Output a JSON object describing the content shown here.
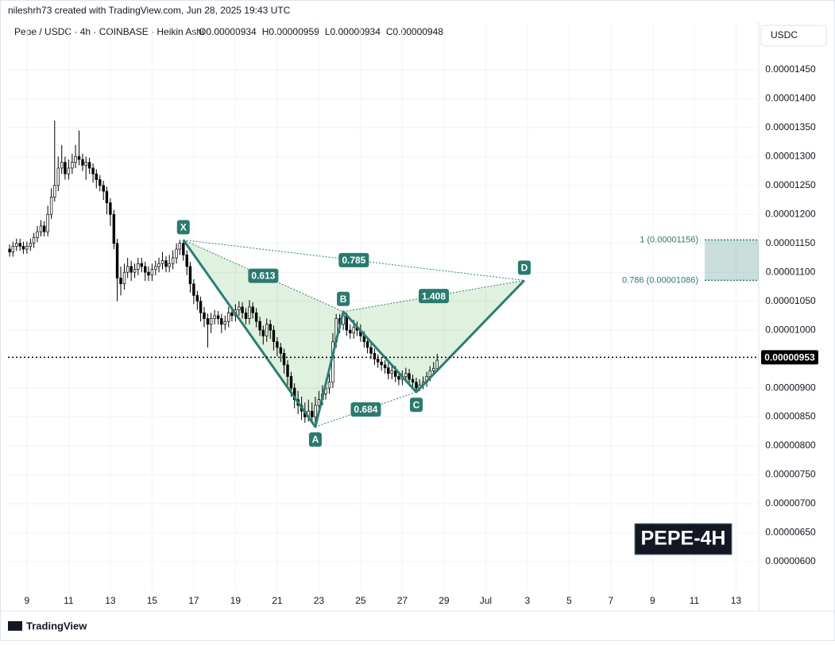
{
  "header": {
    "credit": "nileshrh73 created with TradingView.com, Jun 28, 2025 19:43 UTC",
    "currency": "USDC",
    "badge": "PEPE-4H",
    "brand": "TradingView"
  },
  "chart_data": {
    "type": "candlestick",
    "title": "Pepe / USDC · 4h · COINBASE · Heikin Ashi",
    "ohlc": [
      "O0.00000934",
      "H0.00000959",
      "L0.00000934",
      "C0.00000948"
    ],
    "xlim": [
      8.09,
      44.09
    ],
    "ylim": [
      5.56e-06,
      1.491e-05
    ],
    "grid": true,
    "up_color": "#ffffff",
    "down_color": "#000000",
    "xticks": [
      9,
      11,
      13,
      15,
      17,
      19,
      21,
      23,
      25,
      27,
      29,
      {
        "value": 31,
        "label": "Jul"
      },
      {
        "value": 33,
        "label": "3"
      },
      {
        "value": 35,
        "label": "5"
      },
      {
        "value": 37,
        "label": "7"
      },
      {
        "value": 39,
        "label": "9"
      },
      {
        "value": 41,
        "label": "11"
      },
      {
        "value": 43,
        "label": "13"
      }
    ],
    "yticks": [
      {
        "value": 6e-06,
        "label": "0.00000600"
      },
      {
        "value": 6.5e-06,
        "label": "0.00000650"
      },
      {
        "value": 7e-06,
        "label": "0.00000700"
      },
      {
        "value": 7.5e-06,
        "label": "0.00000750"
      },
      {
        "value": 8e-06,
        "label": "0.00000800"
      },
      {
        "value": 8.5e-06,
        "label": "0.00000850"
      },
      {
        "value": 9e-06,
        "label": "0.00000900"
      },
      {
        "value": 9.5e-06,
        "label": "0.00000950"
      },
      {
        "value": 1e-05,
        "label": "0.00001000"
      },
      {
        "value": 1.05e-05,
        "label": "0.00001050"
      },
      {
        "value": 1.1e-05,
        "label": "0.00001100"
      },
      {
        "value": 1.15e-05,
        "label": "0.00001150"
      },
      {
        "value": 1.2e-05,
        "label": "0.00001200"
      },
      {
        "value": 1.25e-05,
        "label": "0.00001250"
      },
      {
        "value": 1.3e-05,
        "label": "0.00001300"
      },
      {
        "value": 1.35e-05,
        "label": "0.00001350"
      },
      {
        "value": 1.4e-05,
        "label": "0.00001400"
      },
      {
        "value": 1.45e-05,
        "label": "0.00001450"
      }
    ],
    "last_price": {
      "value": 9.53e-06,
      "label": "0.00000953"
    },
    "candles": [
      [
        8.17,
        1.14e-05,
        1.148e-05,
        1.127e-05,
        1.135e-05
      ],
      [
        8.33,
        1.135e-05,
        1.153e-05,
        1.127e-05,
        1.145e-05
      ],
      [
        8.5,
        1.145e-05,
        1.158e-05,
        1.137e-05,
        1.15e-05
      ],
      [
        8.67,
        1.15e-05,
        1.158e-05,
        1.137e-05,
        1.145e-05
      ],
      [
        8.83,
        1.145e-05,
        1.153e-05,
        1.132e-05,
        1.14e-05
      ],
      [
        9,
        1.14e-05,
        1.153e-05,
        1.132e-05,
        1.145e-05
      ],
      [
        9.17,
        1.145e-05,
        1.158e-05,
        1.137e-05,
        1.15e-05
      ],
      [
        9.33,
        1.15e-05,
        1.168e-05,
        1.142e-05,
        1.16e-05
      ],
      [
        9.5,
        1.16e-05,
        1.18e-05,
        1.152e-05,
        1.17e-05
      ],
      [
        9.67,
        1.17e-05,
        1.19e-05,
        1.162e-05,
        1.18e-05
      ],
      [
        9.83,
        1.18e-05,
        1.188e-05,
        1.162e-05,
        1.17e-05
      ],
      [
        10,
        1.17e-05,
        1.215e-05,
        1.162e-05,
        1.2e-05
      ],
      [
        10.17,
        1.2e-05,
        1.245e-05,
        1.192e-05,
        1.23e-05
      ],
      [
        10.33,
        1.23e-05,
        1.362e-05,
        1.222e-05,
        1.25e-05
      ],
      [
        10.5,
        1.25e-05,
        1.3e-05,
        1.24e-05,
        1.28e-05
      ],
      [
        10.67,
        1.28e-05,
        1.32e-05,
        1.27e-05,
        1.29e-05
      ],
      [
        10.83,
        1.29e-05,
        1.3e-05,
        1.26e-05,
        1.27e-05
      ],
      [
        11,
        1.27e-05,
        1.295e-05,
        1.26e-05,
        1.28e-05
      ],
      [
        11.17,
        1.28e-05,
        1.305e-05,
        1.27e-05,
        1.29e-05
      ],
      [
        11.33,
        1.29e-05,
        1.32e-05,
        1.28e-05,
        1.3e-05
      ],
      [
        11.5,
        1.3e-05,
        1.345e-05,
        1.285e-05,
        1.295e-05
      ],
      [
        11.67,
        1.295e-05,
        1.305e-05,
        1.275e-05,
        1.285e-05
      ],
      [
        11.83,
        1.285e-05,
        1.3e-05,
        1.26e-05,
        1.29e-05
      ],
      [
        12,
        1.29e-05,
        1.298e-05,
        1.27e-05,
        1.28e-05
      ],
      [
        12.17,
        1.28e-05,
        1.288e-05,
        1.255e-05,
        1.27e-05
      ],
      [
        12.33,
        1.27e-05,
        1.278e-05,
        1.245e-05,
        1.26e-05
      ],
      [
        12.5,
        1.26e-05,
        1.268e-05,
        1.24e-05,
        1.25e-05
      ],
      [
        12.67,
        1.25e-05,
        1.258e-05,
        1.225e-05,
        1.24e-05
      ],
      [
        12.83,
        1.24e-05,
        1.248e-05,
        1.2e-05,
        1.22e-05
      ],
      [
        13,
        1.22e-05,
        1.228e-05,
        1.18e-05,
        1.2e-05
      ],
      [
        13.17,
        1.2e-05,
        1.208e-05,
        1.14e-05,
        1.15e-05
      ],
      [
        13.33,
        1.15e-05,
        1.158e-05,
        1.05e-05,
        1.09e-05
      ],
      [
        13.5,
        1.09e-05,
        1.11e-05,
        1.06e-05,
        1.08e-05
      ],
      [
        13.67,
        1.08e-05,
        1.115e-05,
        1.07e-05,
        1.1e-05
      ],
      [
        13.83,
        1.1e-05,
        1.125e-05,
        1.09e-05,
        1.11e-05
      ],
      [
        14,
        1.11e-05,
        1.12e-05,
        1.085e-05,
        1.1e-05
      ],
      [
        14.17,
        1.1e-05,
        1.115e-05,
        1.09e-05,
        1.105e-05
      ],
      [
        14.33,
        1.105e-05,
        1.125e-05,
        1.095e-05,
        1.115e-05
      ],
      [
        14.5,
        1.115e-05,
        1.125e-05,
        1.1e-05,
        1.11e-05
      ],
      [
        14.67,
        1.11e-05,
        1.118e-05,
        1.085e-05,
        1.1e-05
      ],
      [
        14.83,
        1.1e-05,
        1.11e-05,
        1.085e-05,
        1.095e-05
      ],
      [
        15,
        1.095e-05,
        1.115e-05,
        1.085e-05,
        1.105e-05
      ],
      [
        15.17,
        1.105e-05,
        1.12e-05,
        1.095e-05,
        1.11e-05
      ],
      [
        15.33,
        1.11e-05,
        1.125e-05,
        1.1e-05,
        1.115e-05
      ],
      [
        15.5,
        1.115e-05,
        1.135e-05,
        1.105e-05,
        1.12e-05
      ],
      [
        15.67,
        1.12e-05,
        1.128e-05,
        1.1e-05,
        1.11e-05
      ],
      [
        15.83,
        1.11e-05,
        1.13e-05,
        1.1e-05,
        1.115e-05
      ],
      [
        16,
        1.115e-05,
        1.138e-05,
        1.105e-05,
        1.125e-05
      ],
      [
        16.17,
        1.125e-05,
        1.15e-05,
        1.115e-05,
        1.14e-05
      ],
      [
        16.33,
        1.14e-05,
        1.156e-05,
        1.13e-05,
        1.15e-05
      ],
      [
        16.5,
        1.15e-05,
        1.156e-05,
        1.12e-05,
        1.13e-05
      ],
      [
        16.67,
        1.13e-05,
        1.138e-05,
        1.095e-05,
        1.11e-05
      ],
      [
        16.83,
        1.11e-05,
        1.118e-05,
        1.065e-05,
        1.08e-05
      ],
      [
        17,
        1.08e-05,
        1.088e-05,
        1.045e-05,
        1.06e-05
      ],
      [
        17.17,
        1.06e-05,
        1.068e-05,
        1.035e-05,
        1.05e-05
      ],
      [
        17.33,
        1.05e-05,
        1.058e-05,
        1.015e-05,
        1.03e-05
      ],
      [
        17.5,
        1.03e-05,
        1.04e-05,
        1.005e-05,
        1.02e-05
      ],
      [
        17.67,
        1.02e-05,
        1.028e-05,
        9.7e-06,
        1.01e-05
      ],
      [
        17.83,
        1.01e-05,
        1.03e-05,
        9.95e-06,
        1.02e-05
      ],
      [
        18,
        1.02e-05,
        1.035e-05,
        1.01e-05,
        1.025e-05
      ],
      [
        18.17,
        1.025e-05,
        1.033e-05,
        1.01e-05,
        1.02e-05
      ],
      [
        18.33,
        1.02e-05,
        1.028e-05,
        9.95e-06,
        1.01e-05
      ],
      [
        18.5,
        1.01e-05,
        1.025e-05,
        1e-05,
        1.015e-05
      ],
      [
        18.67,
        1.015e-05,
        1.04e-05,
        1.005e-05,
        1.03e-05
      ],
      [
        18.83,
        1.03e-05,
        1.04e-05,
        1.015e-05,
        1.025e-05
      ],
      [
        19,
        1.025e-05,
        1.045e-05,
        1.015e-05,
        1.035e-05
      ],
      [
        19.17,
        1.035e-05,
        1.05e-05,
        1.025e-05,
        1.04e-05
      ],
      [
        19.33,
        1.04e-05,
        1.048e-05,
        1.02e-05,
        1.03e-05
      ],
      [
        19.5,
        1.03e-05,
        1.038e-05,
        1.01e-05,
        1.02e-05
      ],
      [
        19.67,
        1.02e-05,
        1.052e-05,
        1.01e-05,
        1.04e-05
      ],
      [
        19.83,
        1.04e-05,
        1.048e-05,
        1.02e-05,
        1.03e-05
      ],
      [
        20,
        1.03e-05,
        1.038e-05,
        1.005e-05,
        1.015e-05
      ],
      [
        20.17,
        1.015e-05,
        1.023e-05,
        9.9e-06,
        1e-05
      ],
      [
        20.33,
        1e-05,
        1.008e-05,
        9.75e-06,
        9.9e-06
      ],
      [
        20.5,
        9.9e-06,
        1.02e-05,
        9.8e-06,
        1.01e-05
      ],
      [
        20.67,
        1.01e-05,
        1.018e-05,
        9.85e-06,
        1e-05
      ],
      [
        20.83,
        1e-05,
        1.008e-05,
        9.65e-06,
        9.8e-06
      ],
      [
        21,
        9.8e-06,
        9.88e-06,
        9.55e-06,
        9.7e-06
      ],
      [
        21.17,
        9.7e-06,
        9.78e-06,
        9.45e-06,
        9.6e-06
      ],
      [
        21.33,
        9.6e-06,
        9.68e-06,
        9.25e-06,
        9.4e-06
      ],
      [
        21.5,
        9.4e-06,
        9.48e-06,
        9.05e-06,
        9.2e-06
      ],
      [
        21.67,
        9.2e-06,
        9.28e-06,
        8.85e-06,
        9e-06
      ],
      [
        21.83,
        9e-06,
        9.08e-06,
        8.65e-06,
        8.8e-06
      ],
      [
        22,
        8.8e-06,
        8.95e-06,
        8.55e-06,
        8.7e-06
      ],
      [
        22.17,
        8.7e-06,
        8.85e-06,
        8.45e-06,
        8.6e-06
      ],
      [
        22.33,
        8.6e-06,
        8.75e-06,
        8.4e-06,
        8.5e-06
      ],
      [
        22.5,
        8.5e-06,
        8.8e-06,
        8.42e-06,
        8.6e-06
      ],
      [
        22.67,
        8.6e-06,
        8.75e-06,
        8.38e-06,
        8.5e-06
      ],
      [
        22.83,
        8.5e-06,
        8.85e-06,
        8.33e-06,
        8.7e-06
      ],
      [
        23,
        8.7e-06,
        8.95e-06,
        8.6e-06,
        8.8e-06
      ],
      [
        23.17,
        8.8e-06,
        9.05e-06,
        8.7e-06,
        8.9e-06
      ],
      [
        23.33,
        8.9e-06,
        9.15e-06,
        8.8e-06,
        9e-06
      ],
      [
        23.5,
        9e-06,
        9.25e-06,
        8.9e-06,
        9.1e-06
      ],
      [
        23.67,
        9.1e-06,
        9.95e-06,
        9e-06,
        9.8e-06
      ],
      [
        23.83,
        9.8e-06,
        1.028e-05,
        9.7e-06,
        1.02e-05
      ],
      [
        24,
        1.02e-05,
        1.028e-05,
        9.95e-06,
        1.01e-05
      ],
      [
        24.17,
        1.01e-05,
        1.032e-05,
        1e-05,
        1.025e-05
      ],
      [
        24.33,
        1.025e-05,
        1.03e-05,
        9.9e-06,
        1e-05
      ],
      [
        24.5,
        1e-05,
        1.01e-05,
        9.85e-06,
        9.95e-06
      ],
      [
        24.67,
        9.95e-06,
        1.018e-05,
        9.85e-06,
        1.005e-05
      ],
      [
        24.83,
        1.005e-05,
        1.015e-05,
        9.9e-06,
        1e-05
      ],
      [
        25,
        1e-05,
        1.01e-05,
        9.8e-06,
        9.9e-06
      ],
      [
        25.17,
        9.9e-06,
        9.98e-06,
        9.7e-06,
        9.8e-06
      ],
      [
        25.33,
        9.8e-06,
        9.88e-06,
        9.6e-06,
        9.7e-06
      ],
      [
        25.5,
        9.7e-06,
        9.78e-06,
        9.5e-06,
        9.6e-06
      ],
      [
        25.67,
        9.6e-06,
        9.68e-06,
        9.4e-06,
        9.5e-06
      ],
      [
        25.83,
        9.5e-06,
        9.58e-06,
        9.35e-06,
        9.45e-06
      ],
      [
        26,
        9.45e-06,
        9.53e-06,
        9.3e-06,
        9.4e-06
      ],
      [
        26.17,
        9.4e-06,
        9.48e-06,
        9.25e-06,
        9.35e-06
      ],
      [
        26.33,
        9.35e-06,
        9.43e-06,
        9.15e-06,
        9.25e-06
      ],
      [
        26.5,
        9.25e-06,
        9.4e-06,
        9.15e-06,
        9.3e-06
      ],
      [
        26.67,
        9.3e-06,
        9.38e-06,
        9.1e-06,
        9.2e-06
      ],
      [
        26.83,
        9.2e-06,
        9.28e-06,
        9.05e-06,
        9.15e-06
      ],
      [
        27,
        9.15e-06,
        9.3e-06,
        9.05e-06,
        9.2e-06
      ],
      [
        27.17,
        9.2e-06,
        9.35e-06,
        9.1e-06,
        9.25e-06
      ],
      [
        27.33,
        9.25e-06,
        9.33e-06,
        9.05e-06,
        9.15e-06
      ],
      [
        27.5,
        9.15e-06,
        9.23e-06,
        9e-06,
        9.1e-06
      ],
      [
        27.67,
        9.1e-06,
        9.18e-06,
        8.93e-06,
        9e-06
      ],
      [
        27.83,
        9e-06,
        9.15e-06,
        8.95e-06,
        9.05e-06
      ],
      [
        28,
        9.05e-06,
        9.2e-06,
        8.98e-06,
        9.1e-06
      ],
      [
        28.17,
        9.1e-06,
        9.28e-06,
        9.02e-06,
        9.2e-06
      ],
      [
        28.33,
        9.2e-06,
        9.38e-06,
        9.12e-06,
        9.3e-06
      ],
      [
        28.5,
        9.3e-06,
        9.45e-06,
        9.22e-06,
        9.34e-06
      ],
      [
        28.67,
        9.34e-06,
        9.59e-06,
        9.34e-06,
        9.48e-06
      ]
    ],
    "pattern": {
      "points": [
        {
          "label": "X",
          "x": 16.5,
          "y": 1.156e-05
        },
        {
          "label": "A",
          "x": 22.83,
          "y": 8.33e-06
        },
        {
          "label": "B",
          "x": 24.17,
          "y": 1.032e-05
        },
        {
          "label": "C",
          "x": 27.67,
          "y": 8.93e-06
        },
        {
          "label": "D",
          "x": 32.85,
          "y": 1.086e-05
        }
      ],
      "ratios": [
        0.613,
        0.785,
        1.408,
        0.684
      ],
      "color": "#2e7d73"
    },
    "prz": {
      "x": [
        41.5,
        44.09
      ],
      "levels": [
        {
          "value": 1.156e-05,
          "label": "1 (0.00001156)"
        },
        {
          "value": 1.086e-05,
          "label": "0.786 (0.00001086)"
        }
      ]
    }
  }
}
